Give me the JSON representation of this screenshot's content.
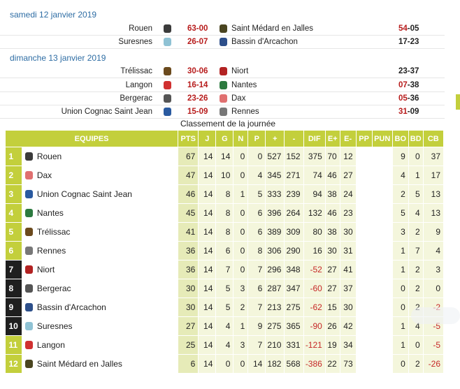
{
  "days": [
    {
      "label": "samedi 12 janvier 2019",
      "matches": [
        {
          "home": "Rouen",
          "home_logo": "#3b3b3b",
          "score1": "63-00",
          "away": "Saint Médard en Jalles",
          "away_logo": "#4a4520",
          "score2_a": "54",
          "score2_b": "-05"
        },
        {
          "home": "Suresnes",
          "home_logo": "#8fc2d4",
          "score1": "26-07",
          "away": "Bassin d'Arcachon",
          "away_logo": "#2d4f8a",
          "score2_a": "",
          "score2_b": "17-23"
        }
      ]
    },
    {
      "label": "dimanche 13 janvier 2019",
      "matches": [
        {
          "home": "Trélissac",
          "home_logo": "#6b4a1d",
          "score1": "30-06",
          "away": "Niort",
          "away_logo": "#b22222",
          "score2_a": "",
          "score2_b": "23-37"
        },
        {
          "home": "Langon",
          "home_logo": "#d03030",
          "score1": "16-14",
          "away": "Nantes",
          "away_logo": "#2c7a3f",
          "score2_a": "07",
          "score2_b": "-38"
        },
        {
          "home": "Bergerac",
          "home_logo": "#555555",
          "score1": "23-26",
          "away": "Dax",
          "away_logo": "#e07070",
          "score2_a": "05",
          "score2_b": "-36"
        },
        {
          "home": "Union Cognac Saint Jean",
          "home_logo": "#2a5aa0",
          "score1": "15-09",
          "away": "Rennes",
          "away_logo": "#777777",
          "score2_a": "31",
          "score2_b": "-09"
        }
      ]
    }
  ],
  "caption": "Classement de la journée",
  "headers": [
    "EQUIPES",
    "PTS",
    "J",
    "G",
    "N",
    "P",
    "+",
    "-",
    "DIF",
    "E+",
    "E-",
    "PP",
    "PUN",
    "BO",
    "BD",
    "CB"
  ],
  "rows": [
    {
      "rank": "1",
      "team": "Rouen",
      "logo": "#3b3b3b",
      "dark": false,
      "pts": "67",
      "j": "14",
      "g": "14",
      "n": "0",
      "p": "0",
      "plus": "527",
      "minus": "152",
      "dif": "375",
      "ep": "70",
      "em": "12",
      "pp": "",
      "pun": "",
      "bo": "9",
      "bd": "0",
      "cb": "37"
    },
    {
      "rank": "2",
      "team": "Dax",
      "logo": "#e07070",
      "dark": false,
      "pts": "47",
      "j": "14",
      "g": "10",
      "n": "0",
      "p": "4",
      "plus": "345",
      "minus": "271",
      "dif": "74",
      "ep": "46",
      "em": "27",
      "pp": "",
      "pun": "",
      "bo": "4",
      "bd": "1",
      "cb": "17"
    },
    {
      "rank": "3",
      "team": "Union Cognac Saint Jean",
      "logo": "#2a5aa0",
      "dark": false,
      "pts": "46",
      "j": "14",
      "g": "8",
      "n": "1",
      "p": "5",
      "plus": "333",
      "minus": "239",
      "dif": "94",
      "ep": "38",
      "em": "24",
      "pp": "",
      "pun": "",
      "bo": "2",
      "bd": "5",
      "cb": "13"
    },
    {
      "rank": "4",
      "team": "Nantes",
      "logo": "#2c7a3f",
      "dark": false,
      "pts": "45",
      "j": "14",
      "g": "8",
      "n": "0",
      "p": "6",
      "plus": "396",
      "minus": "264",
      "dif": "132",
      "ep": "46",
      "em": "23",
      "pp": "",
      "pun": "",
      "bo": "5",
      "bd": "4",
      "cb": "13"
    },
    {
      "rank": "5",
      "team": "Trélissac",
      "logo": "#6b4a1d",
      "dark": false,
      "pts": "41",
      "j": "14",
      "g": "8",
      "n": "0",
      "p": "6",
      "plus": "389",
      "minus": "309",
      "dif": "80",
      "ep": "38",
      "em": "30",
      "pp": "",
      "pun": "",
      "bo": "3",
      "bd": "2",
      "cb": "9"
    },
    {
      "rank": "6",
      "team": "Rennes",
      "logo": "#777777",
      "dark": false,
      "pts": "36",
      "j": "14",
      "g": "6",
      "n": "0",
      "p": "8",
      "plus": "306",
      "minus": "290",
      "dif": "16",
      "ep": "30",
      "em": "31",
      "pp": "",
      "pun": "",
      "bo": "1",
      "bd": "7",
      "cb": "4"
    },
    {
      "rank": "7",
      "team": "Niort",
      "logo": "#b22222",
      "dark": true,
      "pts": "36",
      "j": "14",
      "g": "7",
      "n": "0",
      "p": "7",
      "plus": "296",
      "minus": "348",
      "dif": "-52",
      "ep": "27",
      "em": "41",
      "pp": "",
      "pun": "",
      "bo": "1",
      "bd": "2",
      "cb": "3"
    },
    {
      "rank": "8",
      "team": "Bergerac",
      "logo": "#555555",
      "dark": true,
      "pts": "30",
      "j": "14",
      "g": "5",
      "n": "3",
      "p": "6",
      "plus": "287",
      "minus": "347",
      "dif": "-60",
      "ep": "27",
      "em": "37",
      "pp": "",
      "pun": "",
      "bo": "0",
      "bd": "2",
      "cb": "0"
    },
    {
      "rank": "9",
      "team": "Bassin d'Arcachon",
      "logo": "#2d4f8a",
      "dark": true,
      "pts": "30",
      "j": "14",
      "g": "5",
      "n": "2",
      "p": "7",
      "plus": "213",
      "minus": "275",
      "dif": "-62",
      "ep": "15",
      "em": "30",
      "pp": "",
      "pun": "",
      "bo": "0",
      "bd": "2",
      "cb": "-2"
    },
    {
      "rank": "10",
      "team": "Suresnes",
      "logo": "#8fc2d4",
      "dark": true,
      "pts": "27",
      "j": "14",
      "g": "4",
      "n": "1",
      "p": "9",
      "plus": "275",
      "minus": "365",
      "dif": "-90",
      "ep": "26",
      "em": "42",
      "pp": "",
      "pun": "",
      "bo": "1",
      "bd": "4",
      "cb": "-5"
    },
    {
      "rank": "11",
      "team": "Langon",
      "logo": "#d03030",
      "dark": false,
      "pts": "25",
      "j": "14",
      "g": "4",
      "n": "3",
      "p": "7",
      "plus": "210",
      "minus": "331",
      "dif": "-121",
      "ep": "19",
      "em": "34",
      "pp": "",
      "pun": "",
      "bo": "1",
      "bd": "0",
      "cb": "-5"
    },
    {
      "rank": "12",
      "team": "Saint Médard en Jalles",
      "logo": "#4a4520",
      "dark": false,
      "pts": "6",
      "j": "14",
      "g": "0",
      "n": "0",
      "p": "14",
      "plus": "182",
      "minus": "568",
      "dif": "-386",
      "ep": "22",
      "em": "73",
      "pp": "",
      "pun": "",
      "bo": "0",
      "bd": "2",
      "cb": "-26"
    }
  ]
}
